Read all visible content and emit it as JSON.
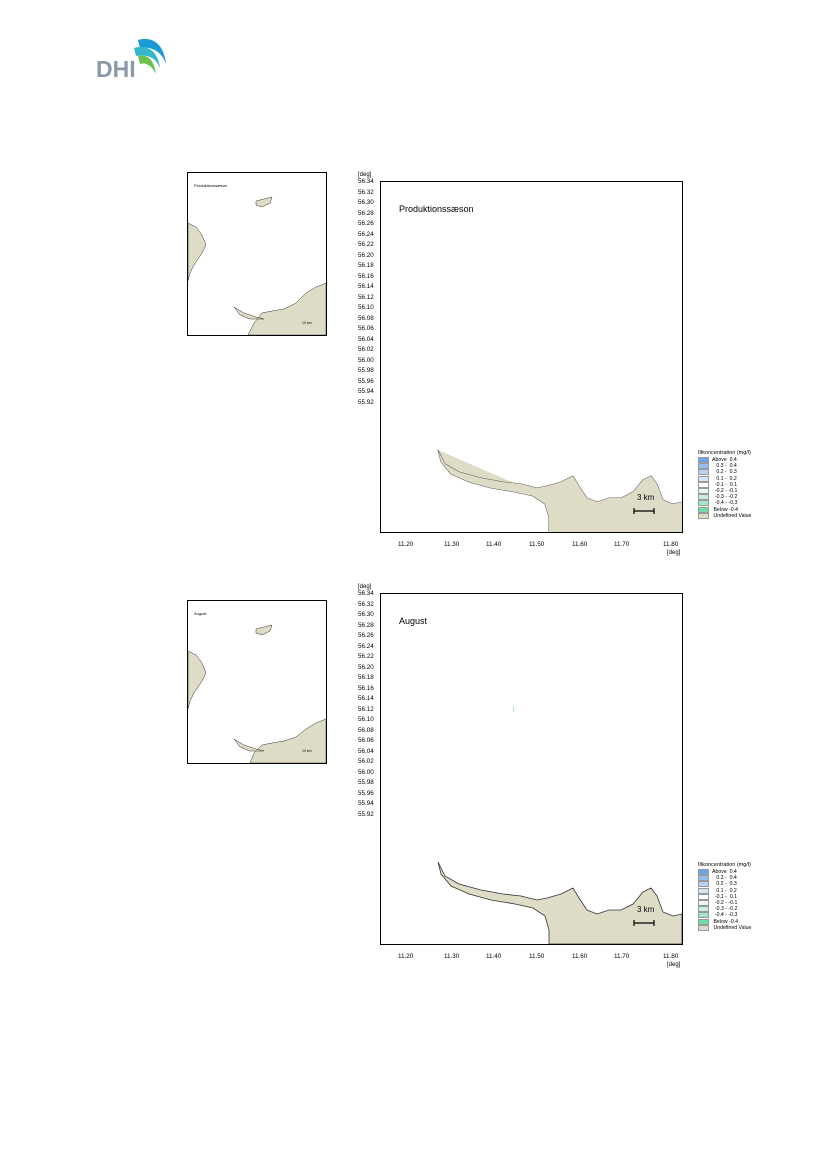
{
  "logo": {
    "text": "DHI"
  },
  "panels": [
    {
      "thumb_title": "Produktionssæson",
      "thumb_scale": "10 km",
      "title": "Produktionssæson",
      "unit": "[deg]",
      "y_ticks": [
        "56.34",
        "56.32",
        "56.30",
        "56.28",
        "56.26",
        "56.24",
        "56.22",
        "56.20",
        "56.18",
        "56.16",
        "56.14",
        "56.12",
        "56.10",
        "56.08",
        "56.06",
        "56.04",
        "56.02",
        "56.00",
        "55.98",
        "55.96",
        "55.94",
        "55.92"
      ],
      "x_ticks": [
        "11.20",
        "11.30",
        "11.40",
        "11.50",
        "11.60",
        "11.70",
        "11.80"
      ],
      "scale_label": "3 km",
      "legend_title": "Iltkoncentration (mg/l)",
      "legend": [
        {
          "label": "Above  0.4",
          "color": "#6aa6e8"
        },
        {
          "label": "   0.3 -  0.4",
          "color": "#93bff0"
        },
        {
          "label": "   0.2 -  0.3",
          "color": "#b5d3f4"
        },
        {
          "label": "   0.1 -  0.2",
          "color": "#d6e6f8"
        },
        {
          "label": "  -0.1 -  0.1",
          "color": "#ffffff"
        },
        {
          "label": "  -0.2 - -0.1",
          "color": "#e6f7ef"
        },
        {
          "label": "  -0.3 - -0.2",
          "color": "#c6f0dc"
        },
        {
          "label": "  -0.4 - -0.3",
          "color": "#a3e8c6"
        },
        {
          "label": " Below -0.4",
          "color": "#6ddca6"
        },
        {
          "label": " Undefined Value",
          "color": "#dedbc6"
        }
      ]
    },
    {
      "thumb_title": "August",
      "thumb_scale": "10 km",
      "title": "August",
      "unit": "[deg]",
      "y_ticks": [
        "56.34",
        "56.32",
        "56.30",
        "56.28",
        "56.26",
        "56.24",
        "56.22",
        "56.20",
        "56.18",
        "56.16",
        "56.14",
        "56.12",
        "56.10",
        "56.08",
        "56.06",
        "56.04",
        "56.02",
        "56.00",
        "55.98",
        "55.96",
        "55.94",
        "55.92"
      ],
      "x_ticks": [
        "11.20",
        "11.30",
        "11.40",
        "11.50",
        "11.60",
        "11.70",
        "11.80"
      ],
      "scale_label": "3 km",
      "legend_title": "Iltkoncentration (mg/l)",
      "legend": [
        {
          "label": "Above  0.4",
          "color": "#6aa6e8"
        },
        {
          "label": "   0.3 -  0.4",
          "color": "#93bff0"
        },
        {
          "label": "   0.2 -  0.3",
          "color": "#b5d3f4"
        },
        {
          "label": "   0.1 -  0.2",
          "color": "#d6e6f8"
        },
        {
          "label": "  -0.1 -  0.1",
          "color": "#ffffff"
        },
        {
          "label": "  -0.2 - -0.1",
          "color": "#e6f7ef"
        },
        {
          "label": "  -0.3 - -0.2",
          "color": "#c6f0dc"
        },
        {
          "label": "  -0.4 - -0.3",
          "color": "#a3e8c6"
        },
        {
          "label": " Below -0.4",
          "color": "#6ddca6"
        },
        {
          "label": " Undefined Value",
          "color": "#dedbc6"
        }
      ]
    }
  ],
  "colors": {
    "land": "#dedbc6",
    "coastline": "#333333"
  }
}
